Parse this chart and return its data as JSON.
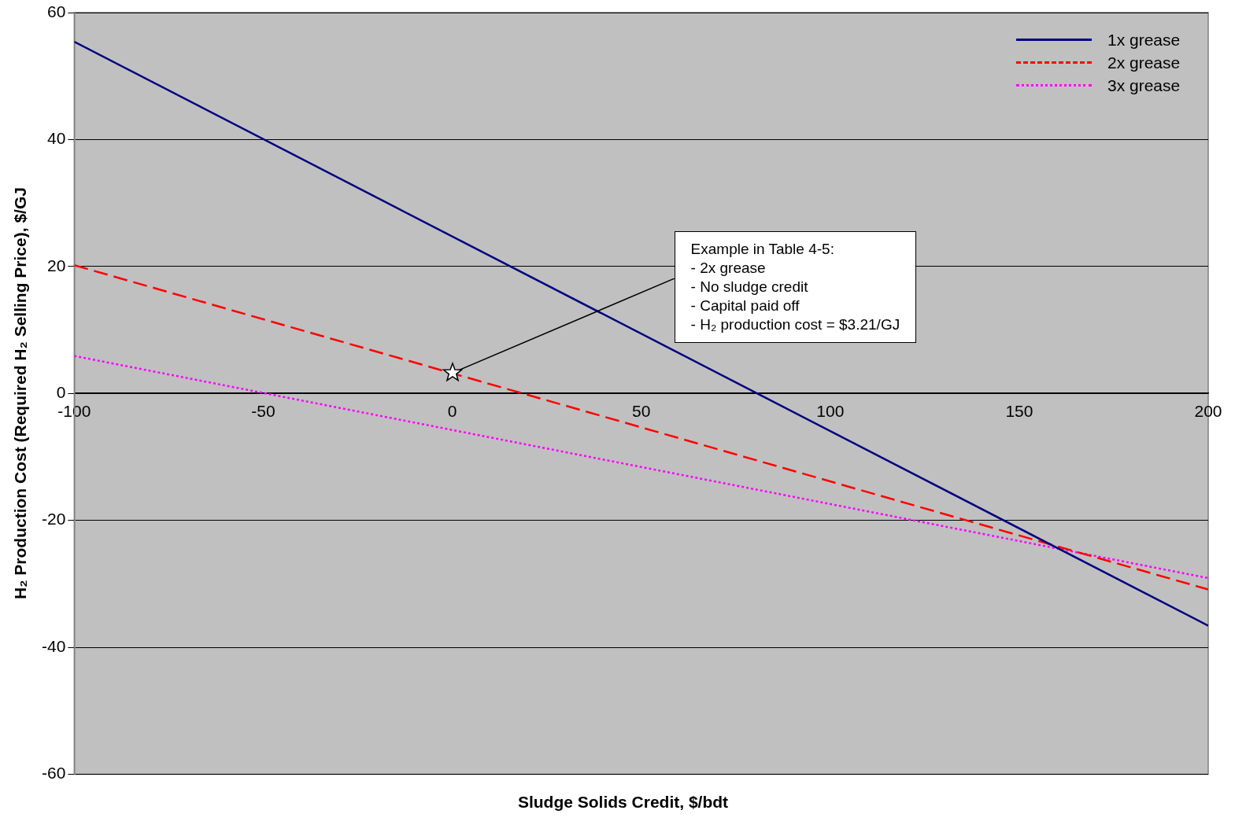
{
  "chart_data": {
    "type": "line",
    "xlabel": "Sludge Solids Credit, $/bdt",
    "ylabel": "H₂ Production Cost (Required H₂ Selling Price), $/GJ",
    "x": [
      -100,
      200
    ],
    "xlim": [
      -100,
      200
    ],
    "xticks": [
      -100,
      -50,
      0,
      50,
      100,
      150,
      200
    ],
    "ylim": [
      -60,
      60
    ],
    "yticks": [
      -60,
      -40,
      -20,
      0,
      20,
      40,
      60
    ],
    "grid": "y",
    "legend": "top right",
    "marker": "none",
    "series": [
      {
        "name": "1x grease",
        "color": "#000080",
        "line_style": "solid",
        "values": [
          55.4,
          -36.6
        ]
      },
      {
        "name": "2x grease",
        "color": "#ff0000",
        "line_style": "dashed",
        "values": [
          20.2,
          -30.9
        ]
      },
      {
        "name": "3x grease",
        "color": "#ff00ff",
        "line_style": "dotted",
        "values": [
          5.9,
          -29.1
        ]
      }
    ],
    "annotations": [
      {
        "text": "Example in Table 4-5:\n- 2x grease\n- No sludge credit\n- Capital paid off\n- H₂ production cost = $3.21/GJ",
        "x": 0,
        "y": 3.21
      }
    ]
  }
}
